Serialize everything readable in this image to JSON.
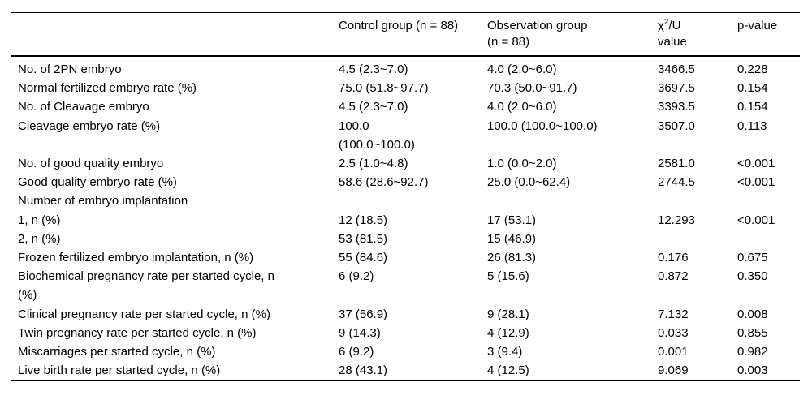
{
  "colors": {
    "background": "#ffffff",
    "text": "#000000",
    "rule": "#000000"
  },
  "table": {
    "header": {
      "variable": "",
      "control": "Control group (n = 88)",
      "observation": "Observation group\n(n = 88)",
      "chi_line1_pre": "χ",
      "chi_sup": "2",
      "chi_line1_post": "/U",
      "chi_line2": "value",
      "p": "p-value"
    },
    "rows": [
      {
        "label": "No. of 2PN embryo",
        "control": "4.5 (2.3~7.0)",
        "observation": "4.0 (2.0~6.0)",
        "chi": "3466.5",
        "p": "0.228"
      },
      {
        "label": "Normal fertilized embryo rate (%)",
        "control": "75.0 (51.8~97.7)",
        "observation": "70.3 (50.0~91.7)",
        "chi": "3697.5",
        "p": "0.154"
      },
      {
        "label": "No. of Cleavage embryo",
        "control": "4.5 (2.3~7.0)",
        "observation": "4.0 (2.0~6.0)",
        "chi": "3393.5",
        "p": "0.154"
      },
      {
        "label": "Cleavage embryo rate (%)",
        "control": "100.0\n(100.0~100.0)",
        "observation": "100.0 (100.0~100.0)",
        "chi": "3507.0",
        "p": "0.113"
      },
      {
        "label": "No. of good quality embryo",
        "control": "2.5 (1.0~4.8)",
        "observation": "1.0 (0.0~2.0)",
        "chi": "2581.0",
        "p": "<0.001"
      },
      {
        "label": "Good quality embryo rate (%)",
        "control": "58.6 (28.6~92.7)",
        "observation": "25.0 (0.0~62.4)",
        "chi": "2744.5",
        "p": "<0.001"
      },
      {
        "label": "Number of embryo implantation",
        "control": "",
        "observation": "",
        "chi": "",
        "p": ""
      },
      {
        "label": "1, n (%)",
        "control": "12 (18.5)",
        "observation": "17 (53.1)",
        "chi": "12.293",
        "p": "<0.001"
      },
      {
        "label": "2, n (%)",
        "control": "53 (81.5)",
        "observation": "15 (46.9)",
        "chi": "",
        "p": ""
      },
      {
        "label": "Frozen fertilized embryo implantation, n (%)",
        "control": "55 (84.6)",
        "observation": "26 (81.3)",
        "chi": "0.176",
        "p": "0.675"
      },
      {
        "label": "Biochemical pregnancy rate per started cycle, n\n(%)",
        "control": "6 (9.2)",
        "observation": "5 (15.6)",
        "chi": "0.872",
        "p": "0.350"
      },
      {
        "label": "Clinical pregnancy rate per started cycle, n (%)",
        "control": "37 (56.9)",
        "observation": "9 (28.1)",
        "chi": "7.132",
        "p": "0.008"
      },
      {
        "label": "Twin pregnancy rate per started cycle, n (%)",
        "control": "9 (14.3)",
        "observation": "4 (12.9)",
        "chi": "0.033",
        "p": "0.855"
      },
      {
        "label": "Miscarriages per started cycle, n (%)",
        "control": "6 (9.2)",
        "observation": "3 (9.4)",
        "chi": "0.001",
        "p": "0.982"
      },
      {
        "label": "Live birth rate per started cycle, n (%)",
        "control": "28 (43.1)",
        "observation": "4 (12.5)",
        "chi": "9.069",
        "p": "0.003"
      }
    ]
  }
}
